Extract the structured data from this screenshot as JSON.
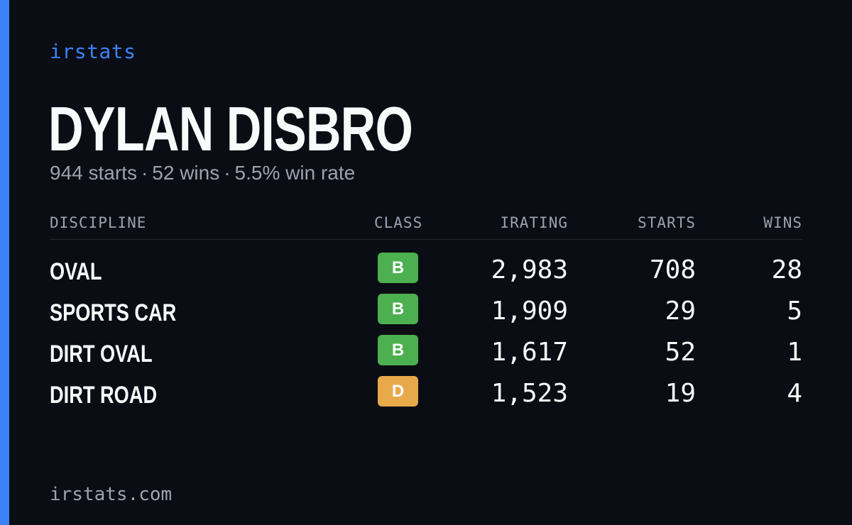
{
  "brand": "irstats",
  "player": {
    "name": "DYLAN DISBRO",
    "starts": "944 starts",
    "wins": "52 wins",
    "win_rate": "5.5% win rate",
    "separator": "·"
  },
  "table": {
    "headers": {
      "discipline": "DISCIPLINE",
      "class": "CLASS",
      "irating": "IRATING",
      "starts": "STARTS",
      "wins": "WINS"
    },
    "rows": [
      {
        "discipline": "OVAL",
        "class": "B",
        "class_color": "#4caf50",
        "irating": "2,983",
        "starts": "708",
        "wins": "28"
      },
      {
        "discipline": "SPORTS CAR",
        "class": "B",
        "class_color": "#4caf50",
        "irating": "1,909",
        "starts": "29",
        "wins": "5"
      },
      {
        "discipline": "DIRT OVAL",
        "class": "B",
        "class_color": "#4caf50",
        "irating": "1,617",
        "starts": "52",
        "wins": "1"
      },
      {
        "discipline": "DIRT ROAD",
        "class": "D",
        "class_color": "#e8a94b",
        "irating": "1,523",
        "starts": "19",
        "wins": "4"
      }
    ]
  },
  "footer": "irstats.com",
  "colors": {
    "background": "#0a0d14",
    "accent": "#3b82f6",
    "muted_text": "#9ca3af",
    "primary_text": "#f8fafc"
  }
}
